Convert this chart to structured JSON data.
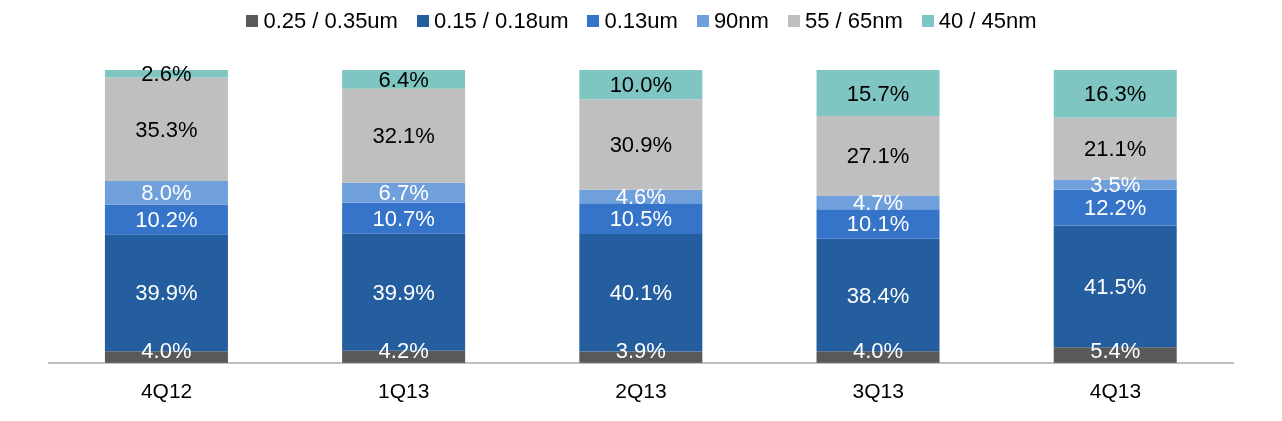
{
  "chart_data": {
    "type": "bar",
    "stacked": true,
    "legend": "top",
    "grid": false,
    "categories": [
      "4Q12",
      "1Q13",
      "2Q13",
      "3Q13",
      "4Q13"
    ],
    "series": [
      {
        "name": "0.25 / 0.35um",
        "color": "#595959",
        "values": [
          4.0,
          4.2,
          3.9,
          4.0,
          5.4
        ],
        "value_labels": [
          "4.0%",
          "4.2%",
          "3.9%",
          "4.0%",
          "5.4%"
        ]
      },
      {
        "name": "0.15 / 0.18um",
        "color": "#255e9e",
        "values": [
          39.9,
          39.9,
          40.1,
          38.4,
          41.5
        ],
        "value_labels": [
          "39.9%",
          "39.9%",
          "40.1%",
          "38.4%",
          "41.5%"
        ]
      },
      {
        "name": "0.13um",
        "color": "#3574c8",
        "values": [
          10.2,
          10.7,
          10.5,
          10.1,
          12.2
        ],
        "value_labels": [
          "10.2%",
          "10.7%",
          "10.5%",
          "10.1%",
          "12.2%"
        ]
      },
      {
        "name": "90nm",
        "color": "#70a0dc",
        "values": [
          8.0,
          6.7,
          4.6,
          4.7,
          3.5
        ],
        "value_labels": [
          "8.0%",
          "6.7%",
          "4.6%",
          "4.7%",
          "3.5%"
        ]
      },
      {
        "name": "55 / 65nm",
        "color": "#bfbfbf",
        "values": [
          35.3,
          32.1,
          30.9,
          27.1,
          21.1
        ],
        "value_labels": [
          "35.3%",
          "32.1%",
          "30.9%",
          "27.1%",
          "21.1%"
        ]
      },
      {
        "name": "40 / 45nm",
        "color": "#7fc6c2",
        "values": [
          2.6,
          6.4,
          10.0,
          15.7,
          16.3
        ],
        "value_labels": [
          "2.6%",
          "6.4%",
          "10.0%",
          "15.7%",
          "16.3%"
        ]
      }
    ]
  }
}
